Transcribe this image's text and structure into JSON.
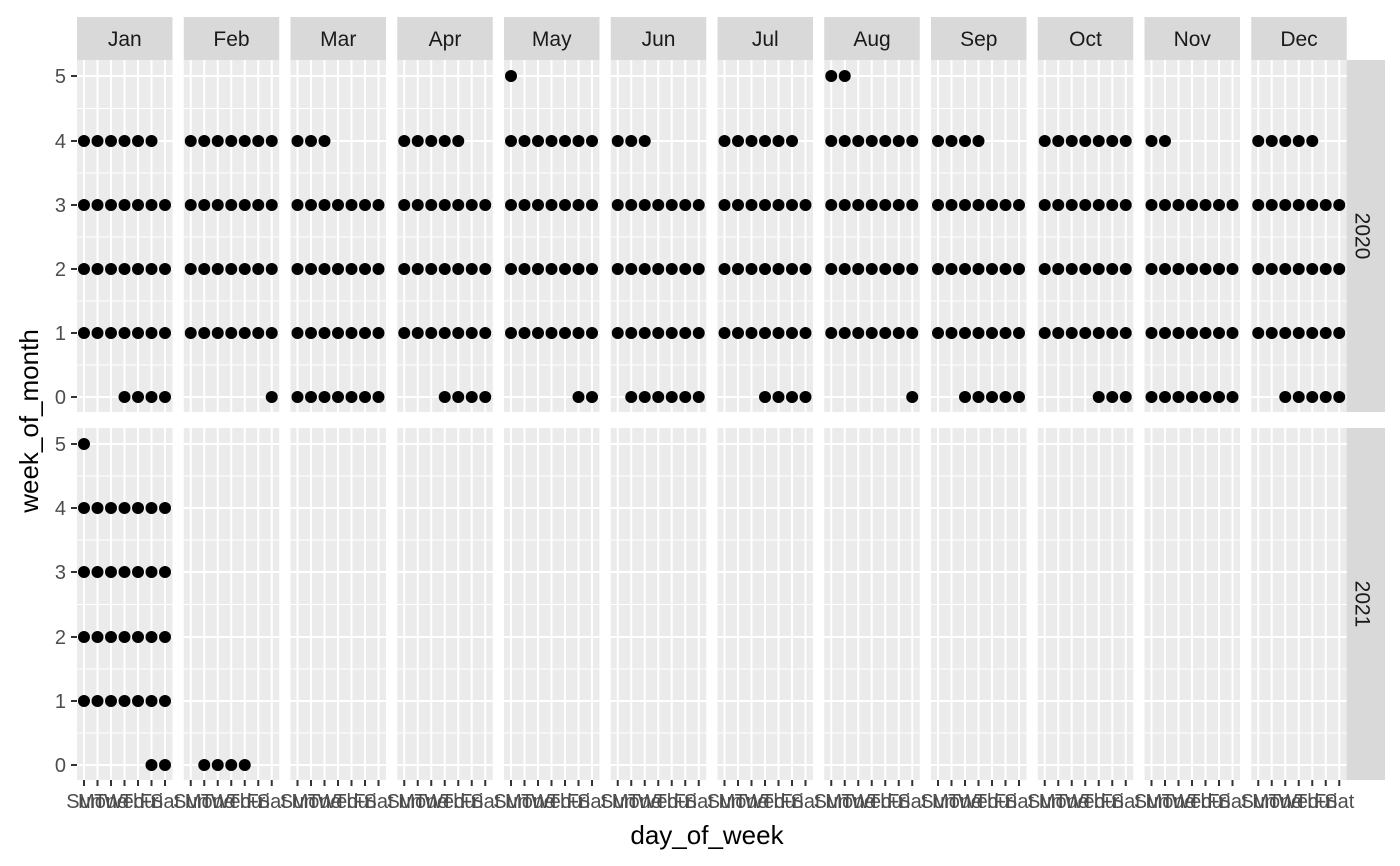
{
  "chart_data": {
    "type": "scatter",
    "xlabel": "day_of_week",
    "ylabel": "week_of_month",
    "x_ticks": [
      "Sun",
      "Mon",
      "Tue",
      "Wed",
      "Thu",
      "Fri",
      "Sat"
    ],
    "y_ticks": [
      0,
      1,
      2,
      3,
      4,
      5
    ],
    "ylim": [
      -0.3,
      5.3
    ],
    "grid": true,
    "columns": [
      "Jan",
      "Feb",
      "Mar",
      "Apr",
      "May",
      "Jun",
      "Jul",
      "Aug",
      "Sep",
      "Oct",
      "Nov",
      "Dec"
    ],
    "rows": [
      "2020",
      "2021"
    ],
    "facets": [
      {
        "year": "2020",
        "month": "Jan",
        "weeks": [
          [
            "Wed",
            "Thu",
            "Fri",
            "Sat"
          ],
          [
            "Sun",
            "Mon",
            "Tue",
            "Wed",
            "Thu",
            "Fri",
            "Sat"
          ],
          [
            "Sun",
            "Mon",
            "Tue",
            "Wed",
            "Thu",
            "Fri",
            "Sat"
          ],
          [
            "Sun",
            "Mon",
            "Tue",
            "Wed",
            "Thu",
            "Fri",
            "Sat"
          ],
          [
            "Sun",
            "Mon",
            "Tue",
            "Wed",
            "Thu",
            "Fri"
          ],
          []
        ]
      },
      {
        "year": "2020",
        "month": "Feb",
        "weeks": [
          [
            "Sat"
          ],
          [
            "Sun",
            "Mon",
            "Tue",
            "Wed",
            "Thu",
            "Fri",
            "Sat"
          ],
          [
            "Sun",
            "Mon",
            "Tue",
            "Wed",
            "Thu",
            "Fri",
            "Sat"
          ],
          [
            "Sun",
            "Mon",
            "Tue",
            "Wed",
            "Thu",
            "Fri",
            "Sat"
          ],
          [
            "Sun",
            "Mon",
            "Tue",
            "Wed",
            "Thu",
            "Fri",
            "Sat"
          ],
          []
        ]
      },
      {
        "year": "2020",
        "month": "Mar",
        "weeks": [
          [
            "Sun",
            "Mon",
            "Tue",
            "Wed",
            "Thu",
            "Fri",
            "Sat"
          ],
          [
            "Sun",
            "Mon",
            "Tue",
            "Wed",
            "Thu",
            "Fri",
            "Sat"
          ],
          [
            "Sun",
            "Mon",
            "Tue",
            "Wed",
            "Thu",
            "Fri",
            "Sat"
          ],
          [
            "Sun",
            "Mon",
            "Tue",
            "Wed",
            "Thu",
            "Fri",
            "Sat"
          ],
          [
            "Sun",
            "Mon",
            "Tue"
          ],
          []
        ]
      },
      {
        "year": "2020",
        "month": "Apr",
        "weeks": [
          [
            "Wed",
            "Thu",
            "Fri",
            "Sat"
          ],
          [
            "Sun",
            "Mon",
            "Tue",
            "Wed",
            "Thu",
            "Fri",
            "Sat"
          ],
          [
            "Sun",
            "Mon",
            "Tue",
            "Wed",
            "Thu",
            "Fri",
            "Sat"
          ],
          [
            "Sun",
            "Mon",
            "Tue",
            "Wed",
            "Thu",
            "Fri",
            "Sat"
          ],
          [
            "Sun",
            "Mon",
            "Tue",
            "Wed",
            "Thu"
          ],
          []
        ]
      },
      {
        "year": "2020",
        "month": "May",
        "weeks": [
          [
            "Fri",
            "Sat"
          ],
          [
            "Sun",
            "Mon",
            "Tue",
            "Wed",
            "Thu",
            "Fri",
            "Sat"
          ],
          [
            "Sun",
            "Mon",
            "Tue",
            "Wed",
            "Thu",
            "Fri",
            "Sat"
          ],
          [
            "Sun",
            "Mon",
            "Tue",
            "Wed",
            "Thu",
            "Fri",
            "Sat"
          ],
          [
            "Sun",
            "Mon",
            "Tue",
            "Wed",
            "Thu",
            "Fri",
            "Sat"
          ],
          [
            "Sun"
          ]
        ]
      },
      {
        "year": "2020",
        "month": "Jun",
        "weeks": [
          [
            "Mon",
            "Tue",
            "Wed",
            "Thu",
            "Fri",
            "Sat"
          ],
          [
            "Sun",
            "Mon",
            "Tue",
            "Wed",
            "Thu",
            "Fri",
            "Sat"
          ],
          [
            "Sun",
            "Mon",
            "Tue",
            "Wed",
            "Thu",
            "Fri",
            "Sat"
          ],
          [
            "Sun",
            "Mon",
            "Tue",
            "Wed",
            "Thu",
            "Fri",
            "Sat"
          ],
          [
            "Sun",
            "Mon",
            "Tue"
          ],
          []
        ]
      },
      {
        "year": "2020",
        "month": "Jul",
        "weeks": [
          [
            "Wed",
            "Thu",
            "Fri",
            "Sat"
          ],
          [
            "Sun",
            "Mon",
            "Tue",
            "Wed",
            "Thu",
            "Fri",
            "Sat"
          ],
          [
            "Sun",
            "Mon",
            "Tue",
            "Wed",
            "Thu",
            "Fri",
            "Sat"
          ],
          [
            "Sun",
            "Mon",
            "Tue",
            "Wed",
            "Thu",
            "Fri",
            "Sat"
          ],
          [
            "Sun",
            "Mon",
            "Tue",
            "Wed",
            "Thu",
            "Fri"
          ],
          []
        ]
      },
      {
        "year": "2020",
        "month": "Aug",
        "weeks": [
          [
            "Sat"
          ],
          [
            "Sun",
            "Mon",
            "Tue",
            "Wed",
            "Thu",
            "Fri",
            "Sat"
          ],
          [
            "Sun",
            "Mon",
            "Tue",
            "Wed",
            "Thu",
            "Fri",
            "Sat"
          ],
          [
            "Sun",
            "Mon",
            "Tue",
            "Wed",
            "Thu",
            "Fri",
            "Sat"
          ],
          [
            "Sun",
            "Mon",
            "Tue",
            "Wed",
            "Thu",
            "Fri",
            "Sat"
          ],
          [
            "Sun",
            "Mon"
          ]
        ]
      },
      {
        "year": "2020",
        "month": "Sep",
        "weeks": [
          [
            "Tue",
            "Wed",
            "Thu",
            "Fri",
            "Sat"
          ],
          [
            "Sun",
            "Mon",
            "Tue",
            "Wed",
            "Thu",
            "Fri",
            "Sat"
          ],
          [
            "Sun",
            "Mon",
            "Tue",
            "Wed",
            "Thu",
            "Fri",
            "Sat"
          ],
          [
            "Sun",
            "Mon",
            "Tue",
            "Wed",
            "Thu",
            "Fri",
            "Sat"
          ],
          [
            "Sun",
            "Mon",
            "Tue",
            "Wed"
          ],
          []
        ]
      },
      {
        "year": "2020",
        "month": "Oct",
        "weeks": [
          [
            "Thu",
            "Fri",
            "Sat"
          ],
          [
            "Sun",
            "Mon",
            "Tue",
            "Wed",
            "Thu",
            "Fri",
            "Sat"
          ],
          [
            "Sun",
            "Mon",
            "Tue",
            "Wed",
            "Thu",
            "Fri",
            "Sat"
          ],
          [
            "Sun",
            "Mon",
            "Tue",
            "Wed",
            "Thu",
            "Fri",
            "Sat"
          ],
          [
            "Sun",
            "Mon",
            "Tue",
            "Wed",
            "Thu",
            "Fri",
            "Sat"
          ],
          []
        ]
      },
      {
        "year": "2020",
        "month": "Nov",
        "weeks": [
          [
            "Sun",
            "Mon",
            "Tue",
            "Wed",
            "Thu",
            "Fri",
            "Sat"
          ],
          [
            "Sun",
            "Mon",
            "Tue",
            "Wed",
            "Thu",
            "Fri",
            "Sat"
          ],
          [
            "Sun",
            "Mon",
            "Tue",
            "Wed",
            "Thu",
            "Fri",
            "Sat"
          ],
          [
            "Sun",
            "Mon",
            "Tue",
            "Wed",
            "Thu",
            "Fri",
            "Sat"
          ],
          [
            "Sun",
            "Mon"
          ],
          []
        ]
      },
      {
        "year": "2020",
        "month": "Dec",
        "weeks": [
          [
            "Tue",
            "Wed",
            "Thu",
            "Fri",
            "Sat"
          ],
          [
            "Sun",
            "Mon",
            "Tue",
            "Wed",
            "Thu",
            "Fri",
            "Sat"
          ],
          [
            "Sun",
            "Mon",
            "Tue",
            "Wed",
            "Thu",
            "Fri",
            "Sat"
          ],
          [
            "Sun",
            "Mon",
            "Tue",
            "Wed",
            "Thu",
            "Fri",
            "Sat"
          ],
          [
            "Sun",
            "Mon",
            "Tue",
            "Wed",
            "Thu"
          ],
          []
        ]
      },
      {
        "year": "2021",
        "month": "Jan",
        "weeks": [
          [
            "Fri",
            "Sat"
          ],
          [
            "Sun",
            "Mon",
            "Tue",
            "Wed",
            "Thu",
            "Fri",
            "Sat"
          ],
          [
            "Sun",
            "Mon",
            "Tue",
            "Wed",
            "Thu",
            "Fri",
            "Sat"
          ],
          [
            "Sun",
            "Mon",
            "Tue",
            "Wed",
            "Thu",
            "Fri",
            "Sat"
          ],
          [
            "Sun",
            "Mon",
            "Tue",
            "Wed",
            "Thu",
            "Fri",
            "Sat"
          ],
          [
            "Sun"
          ]
        ]
      },
      {
        "year": "2021",
        "month": "Feb",
        "weeks": [
          [
            "Mon",
            "Tue",
            "Wed",
            "Thu"
          ],
          [],
          [],
          [],
          [],
          []
        ]
      }
    ]
  }
}
